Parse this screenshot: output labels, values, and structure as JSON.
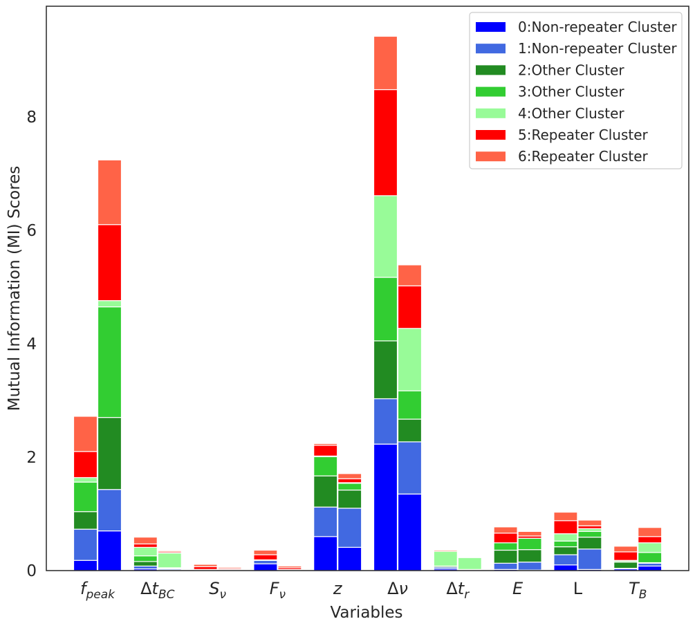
{
  "chart_data": {
    "type": "bar",
    "stacked": true,
    "bars_per_category": 2,
    "xlabel": "Variables",
    "ylabel": "Mutual Information (MI) Scores",
    "ylim": [
      0,
      9.95
    ],
    "yticks": [
      0,
      2,
      4,
      6,
      8
    ],
    "grid": false,
    "legend_position": "top-right",
    "categories": [
      {
        "label": "f",
        "sub": "peak",
        "italic": true
      },
      {
        "label": "Δt",
        "sub": "BC",
        "italic": true
      },
      {
        "label": "S",
        "sub": "ν",
        "italic": true
      },
      {
        "label": "F",
        "sub": "ν",
        "italic": true
      },
      {
        "label": "z",
        "sub": "",
        "italic": true
      },
      {
        "label": "Δν",
        "sub": "",
        "italic": true
      },
      {
        "label": "Δt",
        "sub": "r",
        "italic": true
      },
      {
        "label": "E",
        "sub": "",
        "italic": true
      },
      {
        "label": "L",
        "sub": "",
        "italic": false
      },
      {
        "label": "T",
        "sub": "B",
        "italic": true
      }
    ],
    "series": [
      {
        "name": "0:Non-repeater Cluster",
        "color": "#0000ff",
        "values_bar1": [
          0.18,
          0.03,
          0.01,
          0.12,
          0.6,
          2.23,
          0.03,
          0.02,
          0.1,
          0.03
        ],
        "values_bar2": [
          0.7,
          0.01,
          0.01,
          0.01,
          0.41,
          1.35,
          0.01,
          0.01,
          0.02,
          0.08
        ]
      },
      {
        "name": "1:Non-repeater Cluster",
        "color": "#4169e1",
        "values_bar1": [
          0.55,
          0.05,
          0.01,
          0.06,
          0.52,
          0.8,
          0.03,
          0.11,
          0.18,
          0.01
        ],
        "values_bar2": [
          0.73,
          0.02,
          0.01,
          0.01,
          0.69,
          0.92,
          0.01,
          0.14,
          0.36,
          0.05
        ]
      },
      {
        "name": "2:Other Cluster",
        "color": "#228b22",
        "values_bar1": [
          0.31,
          0.08,
          0.0,
          0.0,
          0.55,
          1.02,
          0.02,
          0.23,
          0.14,
          0.11
        ],
        "values_bar2": [
          1.27,
          0.01,
          0.0,
          0.0,
          0.32,
          0.4,
          0.0,
          0.22,
          0.21,
          0.01
        ]
      },
      {
        "name": "3:Other Cluster",
        "color": "#32cd32",
        "values_bar1": [
          0.52,
          0.1,
          0.0,
          0.0,
          0.34,
          1.12,
          0.0,
          0.13,
          0.1,
          0.02
        ],
        "values_bar2": [
          1.95,
          0.01,
          0.0,
          0.0,
          0.12,
          0.5,
          0.0,
          0.2,
          0.1,
          0.18
        ]
      },
      {
        "name": "4:Other Cluster",
        "color": "#98fb98",
        "values_bar1": [
          0.08,
          0.15,
          0.0,
          0.01,
          0.01,
          1.44,
          0.26,
          0.0,
          0.13,
          0.01
        ],
        "values_bar2": [
          0.11,
          0.26,
          0.0,
          0.0,
          0.01,
          1.1,
          0.21,
          0.0,
          0.05,
          0.17
        ]
      },
      {
        "name": "5:Repeater Cluster",
        "color": "#ff0000",
        "values_bar1": [
          0.46,
          0.06,
          0.05,
          0.09,
          0.19,
          1.87,
          0.0,
          0.17,
          0.23,
          0.15
        ],
        "values_bar2": [
          1.34,
          0.02,
          0.02,
          0.03,
          0.07,
          0.75,
          0.0,
          0.04,
          0.05,
          0.11
        ]
      },
      {
        "name": "6:Repeater Cluster",
        "color": "#ff6347",
        "values_bar1": [
          0.62,
          0.12,
          0.04,
          0.08,
          0.03,
          0.94,
          0.02,
          0.11,
          0.15,
          0.1
        ],
        "values_bar2": [
          1.14,
          0.02,
          0.02,
          0.03,
          0.09,
          0.37,
          0.01,
          0.08,
          0.1,
          0.16
        ]
      }
    ]
  }
}
